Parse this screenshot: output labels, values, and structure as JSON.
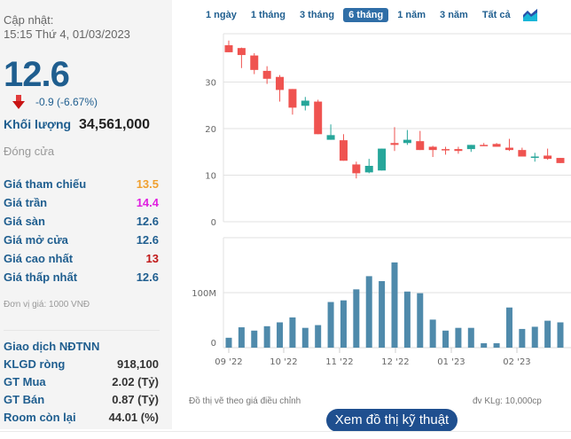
{
  "summary": {
    "update_label": "Cập nhật:",
    "update_time": "15:15 Thứ 4, 01/03/2023",
    "price": "12.6",
    "change": "-0.9 (-6.67%)",
    "volume_label": "Khối lượng",
    "volume_value": "34,561,000",
    "session_status": "Đóng cửa"
  },
  "stats": [
    {
      "label": "Giá tham chiếu",
      "value": "13.5",
      "color": "#f0a030"
    },
    {
      "label": "Giá trần",
      "value": "14.4",
      "color": "#e020e0"
    },
    {
      "label": "Giá sàn",
      "value": "12.6",
      "color": "#1f5e8f"
    },
    {
      "label": "Giá mở cửa",
      "value": "12.6",
      "color": "#1f5e8f"
    },
    {
      "label": "Giá cao nhất",
      "value": "13",
      "color": "#c01818"
    },
    {
      "label": "Giá thấp nhất",
      "value": "12.6",
      "color": "#1f5e8f"
    }
  ],
  "unit_note": "Đơn vị giá: 1000 VNĐ",
  "foreign": {
    "title": "Giao dịch NĐTNN",
    "rows": [
      {
        "label": "KLGD ròng",
        "value": "918,100"
      },
      {
        "label": "GT Mua",
        "value": "2.02 (Tỷ)"
      },
      {
        "label": "GT Bán",
        "value": "0.87 (Tỷ)"
      },
      {
        "label": "Room còn lại",
        "value": "44.01 (%)"
      }
    ]
  },
  "tabs": [
    {
      "label": "1 ngày",
      "active": false
    },
    {
      "label": "1 tháng",
      "active": false
    },
    {
      "label": "3 tháng",
      "active": false
    },
    {
      "label": "6 tháng",
      "active": true
    },
    {
      "label": "1 năm",
      "active": false
    },
    {
      "label": "3 năm",
      "active": false
    },
    {
      "label": "Tất cả",
      "active": false
    }
  ],
  "chart_type_icon": "area-chart-icon",
  "notes": {
    "adjusted": "Đồ thị vẽ theo giá điều chỉnh",
    "volume_unit": "đv KLg: 10,000cp"
  },
  "tech_button": "Xem đồ thị kỹ thuật",
  "colors": {
    "up": "#26a69a",
    "down": "#ef5350",
    "volume": "#4f8aab",
    "accent": "#1f5e8f"
  },
  "chart_data": [
    {
      "type": "candlestick",
      "title": "",
      "xlabel": "",
      "ylabel": "",
      "yticks": [
        0,
        10,
        20,
        30
      ],
      "ylim": [
        0,
        40
      ],
      "grid": true,
      "x_tick_labels": [
        "09 '22",
        "10 '22",
        "11 '22",
        "12 '22",
        "01 '23",
        "02 '23"
      ],
      "series": [
        {
          "o": 37.9,
          "h": 38.9,
          "l": 36.4,
          "c": 36.4
        },
        {
          "o": 37.3,
          "h": 37.4,
          "l": 33.0,
          "c": 35.8
        },
        {
          "o": 35.7,
          "h": 36.2,
          "l": 31.7,
          "c": 32.6
        },
        {
          "o": 32.4,
          "h": 33.4,
          "l": 29.6,
          "c": 30.7
        },
        {
          "o": 31.1,
          "h": 31.5,
          "l": 25.8,
          "c": 28.3
        },
        {
          "o": 28.5,
          "h": 28.5,
          "l": 23.0,
          "c": 24.5
        },
        {
          "o": 24.9,
          "h": 26.8,
          "l": 23.9,
          "c": 26.0
        },
        {
          "o": 25.8,
          "h": 26.2,
          "l": 18.8,
          "c": 18.8
        },
        {
          "o": 17.6,
          "h": 20.9,
          "l": 17.6,
          "c": 18.6
        },
        {
          "o": 17.5,
          "h": 18.8,
          "l": 13.1,
          "c": 13.1
        },
        {
          "o": 12.3,
          "h": 12.9,
          "l": 9.3,
          "c": 10.4
        },
        {
          "o": 10.6,
          "h": 13.5,
          "l": 10.4,
          "c": 12.0
        },
        {
          "o": 11.0,
          "h": 15.7,
          "l": 11.0,
          "c": 15.7
        },
        {
          "o": 16.9,
          "h": 20.3,
          "l": 15.2,
          "c": 16.5
        },
        {
          "o": 16.9,
          "h": 19.7,
          "l": 16.5,
          "c": 17.6
        },
        {
          "o": 17.3,
          "h": 19.5,
          "l": 15.4,
          "c": 15.4
        },
        {
          "o": 16.1,
          "h": 16.3,
          "l": 13.9,
          "c": 15.4
        },
        {
          "o": 15.6,
          "h": 16.1,
          "l": 14.4,
          "c": 15.4
        },
        {
          "o": 15.6,
          "h": 16.1,
          "l": 14.6,
          "c": 15.2
        },
        {
          "o": 15.6,
          "h": 16.5,
          "l": 15.0,
          "c": 16.5
        },
        {
          "o": 16.5,
          "h": 16.9,
          "l": 16.3,
          "c": 16.3
        },
        {
          "o": 16.7,
          "h": 16.9,
          "l": 16.1,
          "c": 16.1
        },
        {
          "o": 15.9,
          "h": 17.8,
          "l": 15.2,
          "c": 15.4
        },
        {
          "o": 15.4,
          "h": 15.9,
          "l": 14.0,
          "c": 14.0
        },
        {
          "o": 13.9,
          "h": 14.8,
          "l": 12.9,
          "c": 14.0
        },
        {
          "o": 14.2,
          "h": 15.7,
          "l": 13.3,
          "c": 13.5
        },
        {
          "o": 13.7,
          "h": 13.7,
          "l": 12.6,
          "c": 12.6
        }
      ]
    },
    {
      "type": "bar",
      "title": "",
      "ylabel": "",
      "yticks": [
        "0",
        "100M"
      ],
      "ylim": [
        0,
        200
      ],
      "unit": "M",
      "x_tick_labels": [
        "09 '22",
        "10 '22",
        "11 '22",
        "12 '22",
        "01 '23",
        "02 '23"
      ],
      "values": [
        18,
        37,
        31,
        39,
        46,
        55,
        36,
        41,
        83,
        86,
        106,
        130,
        121,
        155,
        102,
        99,
        51,
        31,
        36,
        36,
        8,
        8,
        73,
        34,
        38,
        49,
        46
      ]
    }
  ]
}
